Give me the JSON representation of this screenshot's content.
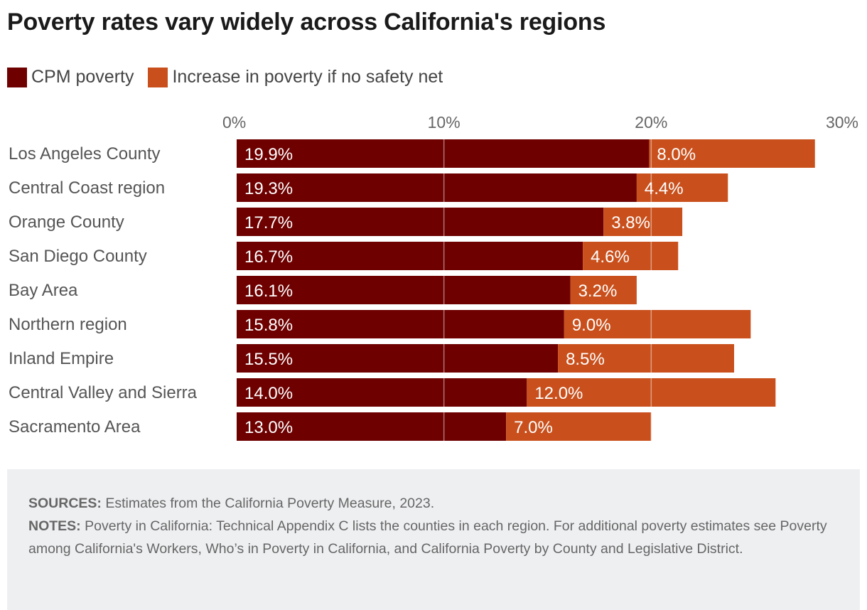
{
  "title": "Poverty rates vary widely across California's regions",
  "legend": [
    {
      "label": "CPM poverty",
      "color": "#6e0000"
    },
    {
      "label": "Increase in poverty if no safety net",
      "color": "#c9501c"
    }
  ],
  "chart_data": {
    "type": "bar",
    "orientation": "horizontal",
    "stacked": true,
    "title": "Poverty rates vary widely across California's regions",
    "categories": [
      "Los Angeles County",
      "Central Coast region",
      "Orange County",
      "San Diego County",
      "Bay Area",
      "Northern region",
      "Inland Empire",
      "Central Valley and Sierra",
      "Sacramento Area"
    ],
    "series": [
      {
        "name": "CPM poverty",
        "color": "#6e0000",
        "values": [
          19.9,
          19.3,
          17.7,
          16.7,
          16.1,
          15.8,
          15.5,
          14.0,
          13.0
        ],
        "labels": [
          "19.9%",
          "19.3%",
          "17.7%",
          "16.7%",
          "16.1%",
          "15.8%",
          "15.5%",
          "14.0%",
          "13.0%"
        ]
      },
      {
        "name": "Increase in poverty if no safety net",
        "color": "#c9501c",
        "values": [
          8.0,
          4.4,
          3.8,
          4.6,
          3.2,
          9.0,
          8.5,
          12.0,
          7.0
        ],
        "labels": [
          "8.0%",
          "4.4%",
          "3.8%",
          "4.6%",
          "3.2%",
          "9.0%",
          "8.5%",
          "12.0%",
          "7.0%"
        ]
      }
    ],
    "xlim": [
      0,
      30
    ],
    "xticks": [
      0,
      10,
      20,
      30
    ],
    "xtick_labels": [
      "0%",
      "10%",
      "20%",
      "30%"
    ],
    "grid": true,
    "legend_position": "top-left",
    "xlabel": "",
    "ylabel": ""
  },
  "footer": {
    "sources_label": "SOURCES:",
    "sources_text": " Estimates from the California Poverty Measure, 2023.",
    "notes_label": "NOTES:",
    "notes_text": " Poverty in California: Technical Appendix C lists the counties in each region. For additional poverty estimates see Poverty among California's Workers, Who’s in Poverty in California, and California Poverty by County and Legislative District."
  }
}
